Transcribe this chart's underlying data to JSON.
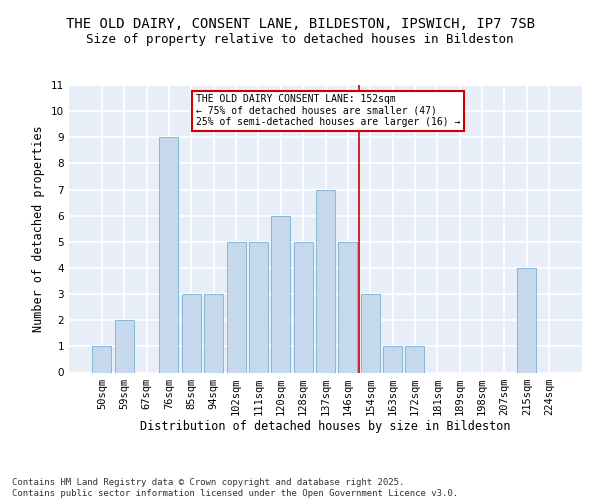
{
  "title_line1": "THE OLD DAIRY, CONSENT LANE, BILDESTON, IPSWICH, IP7 7SB",
  "title_line2": "Size of property relative to detached houses in Bildeston",
  "xlabel": "Distribution of detached houses by size in Bildeston",
  "ylabel": "Number of detached properties",
  "categories": [
    "50sqm",
    "59sqm",
    "67sqm",
    "76sqm",
    "85sqm",
    "94sqm",
    "102sqm",
    "111sqm",
    "120sqm",
    "128sqm",
    "137sqm",
    "146sqm",
    "154sqm",
    "163sqm",
    "172sqm",
    "181sqm",
    "189sqm",
    "198sqm",
    "207sqm",
    "215sqm",
    "224sqm"
  ],
  "values": [
    1,
    2,
    0,
    9,
    3,
    3,
    5,
    5,
    6,
    5,
    7,
    5,
    3,
    1,
    1,
    0,
    0,
    0,
    0,
    4,
    0
  ],
  "bar_color": "#c5d8ec",
  "bar_edgecolor": "#7bafd4",
  "background_color": "#e8eef8",
  "grid_color": "#ffffff",
  "redline_x": 11.5,
  "redline_label": "THE OLD DAIRY CONSENT LANE: 152sqm",
  "redline_note1": "← 75% of detached houses are smaller (47)",
  "redline_note2": "25% of semi-detached houses are larger (16) →",
  "annotation_box_color": "#ffffff",
  "annotation_border_color": "#cc0000",
  "ylim": [
    0,
    11
  ],
  "yticks": [
    0,
    1,
    2,
    3,
    4,
    5,
    6,
    7,
    8,
    9,
    10,
    11
  ],
  "footer": "Contains HM Land Registry data © Crown copyright and database right 2025.\nContains public sector information licensed under the Open Government Licence v3.0.",
  "title_fontsize": 10,
  "subtitle_fontsize": 9,
  "axis_label_fontsize": 8.5,
  "tick_fontsize": 7.5,
  "footer_fontsize": 6.5
}
